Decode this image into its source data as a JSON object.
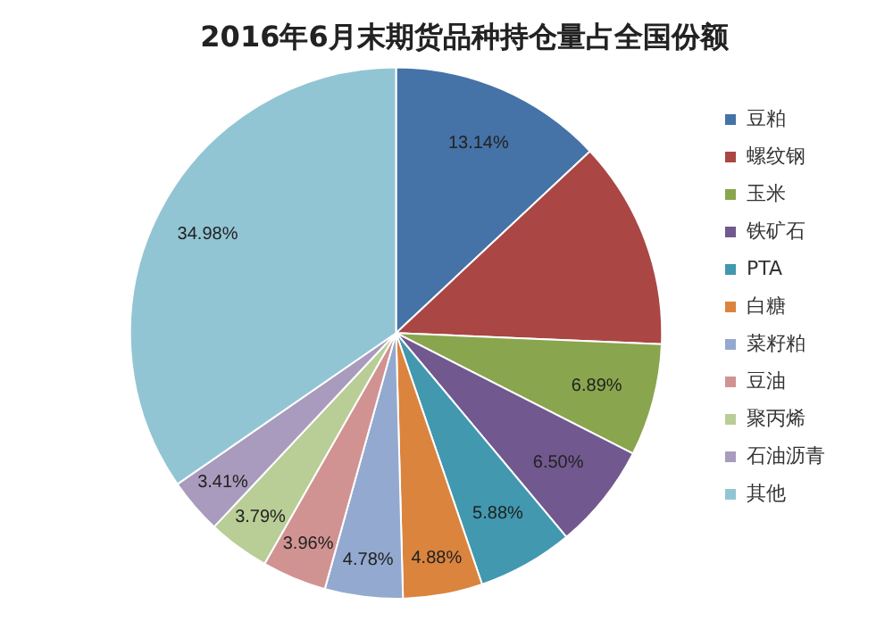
{
  "chart_data": {
    "type": "pie",
    "title": "2016年6月末期货品种持仓量占全国份额",
    "categories": [
      "豆粕",
      "螺纹钢",
      "玉米",
      "铁矿石",
      "PTA",
      "白糖",
      "菜籽粕",
      "豆油",
      "聚丙烯",
      "石油沥青",
      "其他"
    ],
    "values": [
      13.14,
      12.79,
      6.89,
      6.5,
      5.88,
      4.88,
      4.78,
      3.96,
      3.79,
      3.41,
      34.98
    ],
    "value_labels": [
      "13.14%",
      null,
      "6.89%",
      "6.50%",
      "5.88%",
      "4.88%",
      "4.78%",
      "3.96%",
      "3.79%",
      "3.41%",
      "34.98%"
    ],
    "colors": [
      "#4572a7",
      "#aa4643",
      "#89a54e",
      "#71588f",
      "#4198af",
      "#db843d",
      "#93a9cf",
      "#d19392",
      "#b9cd96",
      "#a99bbd",
      "#92c5d4"
    ],
    "legend": "right"
  }
}
